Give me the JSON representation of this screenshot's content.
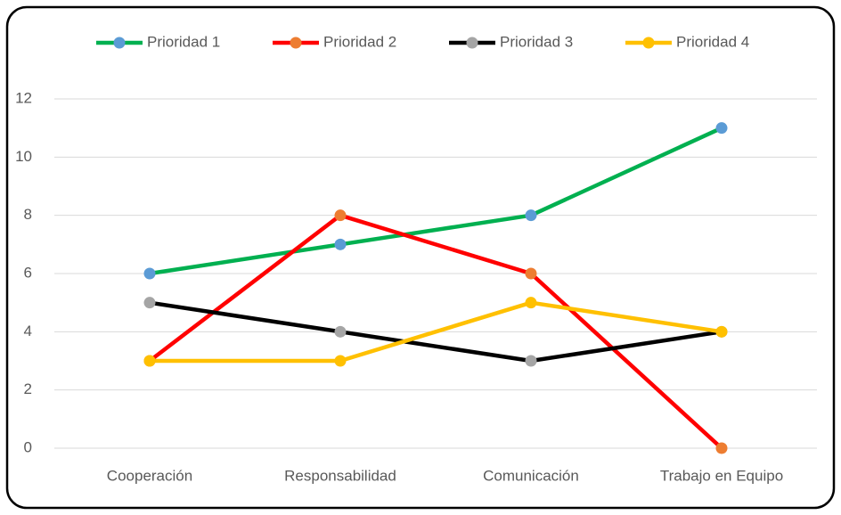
{
  "chart_data": {
    "type": "line",
    "categories": [
      "Cooperación",
      "Responsabilidad",
      "Comunicación",
      "Trabajo en Equipo"
    ],
    "series": [
      {
        "name": "Prioridad 1",
        "color": "#00b050",
        "marker_color": "#5b9bd5",
        "values": [
          6,
          7,
          8,
          11
        ]
      },
      {
        "name": "Prioridad 2",
        "color": "#ff0000",
        "marker_color": "#ed7d31",
        "values": [
          3,
          8,
          6,
          0
        ]
      },
      {
        "name": "Prioridad 3",
        "color": "#000000",
        "marker_color": "#a5a5a5",
        "values": [
          5,
          4,
          3,
          4
        ]
      },
      {
        "name": "Prioridad 4",
        "color": "#ffc000",
        "marker_color": "#ffc000",
        "values": [
          3,
          3,
          5,
          4
        ]
      }
    ],
    "ylim": [
      0,
      12
    ],
    "yticks": [
      0,
      2,
      4,
      6,
      8,
      10,
      12
    ],
    "grid": true,
    "legend": "top"
  }
}
